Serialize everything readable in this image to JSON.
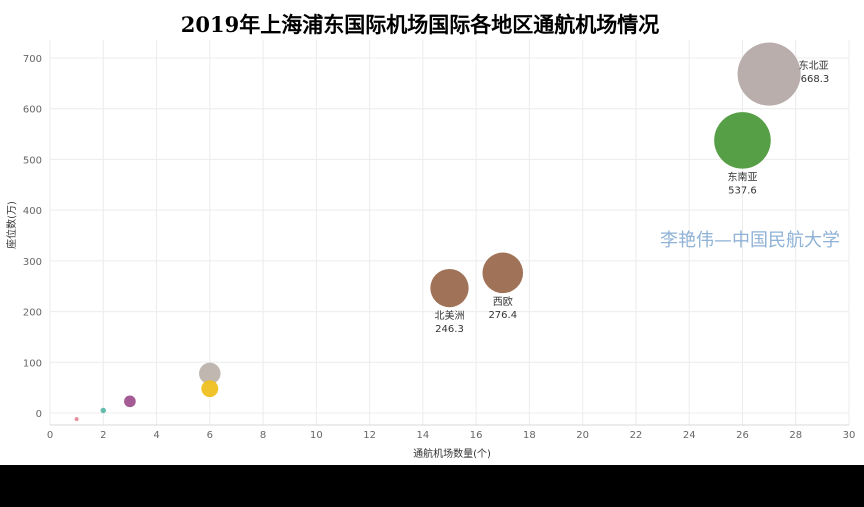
{
  "chart_data": {
    "type": "scatter",
    "title": "2019年上海浦东国际机场国际各地区通航机场情况",
    "xlabel": "通航机场数量(个)",
    "ylabel": "座位数(万)",
    "xlim": [
      0,
      30
    ],
    "ylim": [
      0,
      700
    ],
    "xticks": [
      0,
      2,
      4,
      6,
      8,
      10,
      12,
      14,
      16,
      18,
      20,
      22,
      24,
      26,
      28,
      30
    ],
    "yticks": [
      0,
      100,
      200,
      300,
      400,
      500,
      600,
      700
    ],
    "grid": true,
    "points": [
      {
        "name": "东北亚",
        "value_label": "668.3",
        "x": 27,
        "y": 668.3,
        "color": "#b5aaa6"
      },
      {
        "name": "东南亚",
        "value_label": "537.6",
        "x": 26,
        "y": 537.6,
        "color": "#4e9a3c"
      },
      {
        "name": "西欧",
        "value_label": "276.4",
        "x": 17,
        "y": 276.4,
        "color": "#9b6a4f"
      },
      {
        "name": "北美洲",
        "value_label": "246.3",
        "x": 15,
        "y": 246.3,
        "color": "#9b6a4f"
      },
      {
        "name": "",
        "value_label": "",
        "x": 6,
        "y": 78,
        "color": "#bdb3ad"
      },
      {
        "name": "",
        "value_label": "",
        "x": 6,
        "y": 48,
        "color": "#f0c020"
      },
      {
        "name": "",
        "value_label": "",
        "x": 3,
        "y": 23,
        "color": "#a0528f"
      },
      {
        "name": "",
        "value_label": "",
        "x": 2,
        "y": 5,
        "color": "#5db8a8"
      },
      {
        "name": "",
        "value_label": "",
        "x": 1,
        "y": -12,
        "color": "#e38a9a"
      }
    ]
  },
  "watermark": "李艳伟—中国民航大学"
}
